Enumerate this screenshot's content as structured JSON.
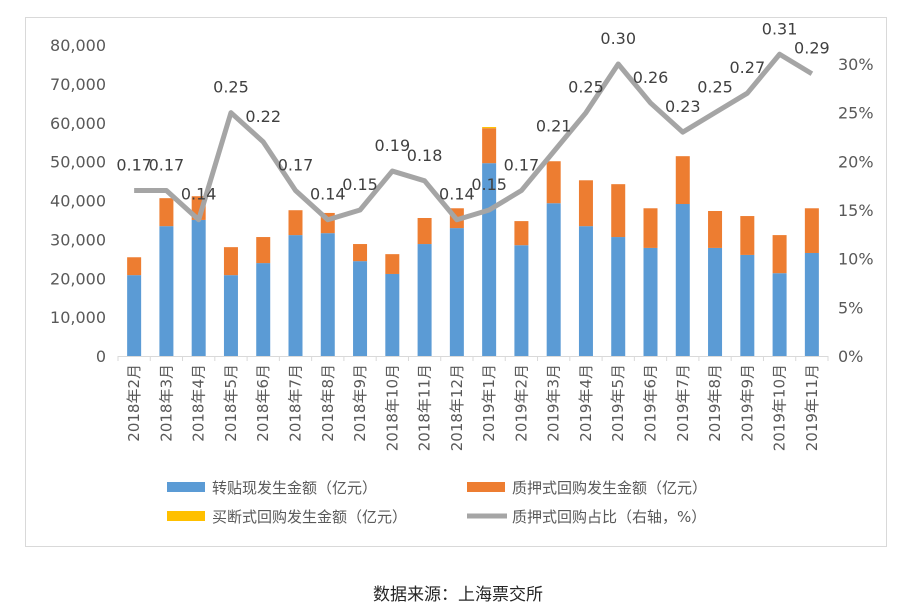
{
  "chart_data": {
    "type": "bar",
    "stacked": true,
    "title": "",
    "categories": [
      "2018年2月",
      "2018年3月",
      "2018年4月",
      "2018年5月",
      "2018年6月",
      "2018年7月",
      "2018年8月",
      "2018年9月",
      "2018年10月",
      "2018年11月",
      "2018年12月",
      "2019年1月",
      "2019年2月",
      "2019年3月",
      "2019年4月",
      "2019年5月",
      "2019年6月",
      "2019年7月",
      "2019年8月",
      "2019年9月",
      "2019年10月",
      "2019年11月"
    ],
    "left_axis": {
      "ylim": [
        0,
        80000
      ],
      "ticks": [
        0,
        10000,
        20000,
        30000,
        40000,
        50000,
        60000,
        70000,
        80000
      ],
      "tick_labels": [
        "0",
        "10,000",
        "20,000",
        "30,000",
        "40,000",
        "50,000",
        "60,000",
        "70,000",
        "80,000"
      ]
    },
    "right_axis": {
      "ylim": [
        0,
        0.3
      ],
      "ticks": [
        0,
        0.05,
        0.1,
        0.15,
        0.2,
        0.25,
        0.3
      ],
      "tick_labels": [
        "0%",
        "5%",
        "10%",
        "15%",
        "20%",
        "25%",
        "30%"
      ]
    },
    "series": [
      {
        "name": "转贴现发生金额（亿元）",
        "kind": "bar",
        "axis": "left",
        "color": "#5b9bd5",
        "values": [
          20800,
          33400,
          35000,
          20800,
          23900,
          31100,
          31600,
          24400,
          21100,
          28800,
          32900,
          49600,
          28500,
          39300,
          33400,
          30600,
          27800,
          39100,
          27800,
          26000,
          21300,
          26500
        ]
      },
      {
        "name": "质押式回购发生金额（亿元）",
        "kind": "bar",
        "axis": "left",
        "color": "#ed7d31",
        "values": [
          4600,
          7200,
          6100,
          7200,
          6700,
          6400,
          5200,
          4400,
          5100,
          6700,
          5100,
          9000,
          6200,
          10800,
          11800,
          13600,
          10200,
          12300,
          9500,
          10000,
          9800,
          11500
        ]
      },
      {
        "name": "买断式回购发生金额（亿元）",
        "kind": "bar",
        "axis": "left",
        "color": "#ffc000",
        "values": [
          0,
          0,
          0,
          0,
          0,
          0,
          0,
          0,
          0,
          0,
          0,
          300,
          0,
          0,
          0,
          0,
          0,
          0,
          0,
          0,
          0,
          0
        ]
      },
      {
        "name": "质押式回购占比（右轴，%）",
        "kind": "line",
        "axis": "right",
        "color": "#a5a5a5",
        "values": [
          0.17,
          0.17,
          0.14,
          0.25,
          0.22,
          0.17,
          0.14,
          0.15,
          0.19,
          0.18,
          0.14,
          0.15,
          0.17,
          0.21,
          0.25,
          0.3,
          0.26,
          0.23,
          0.25,
          0.27,
          0.31,
          0.29
        ],
        "labels": [
          "0.17",
          "0.17",
          "0.14",
          "0.25",
          "0.22",
          "0.17",
          "0.14",
          "0.15",
          "0.19",
          "0.18",
          "0.14",
          "0.15",
          "0.17",
          "0.21",
          "0.25",
          "0.30",
          "0.26",
          "0.23",
          "0.25",
          "0.27",
          "0.31",
          "0.29"
        ]
      }
    ],
    "legend_position": "bottom",
    "grid": false
  },
  "source_text": "数据来源：上海票交所"
}
